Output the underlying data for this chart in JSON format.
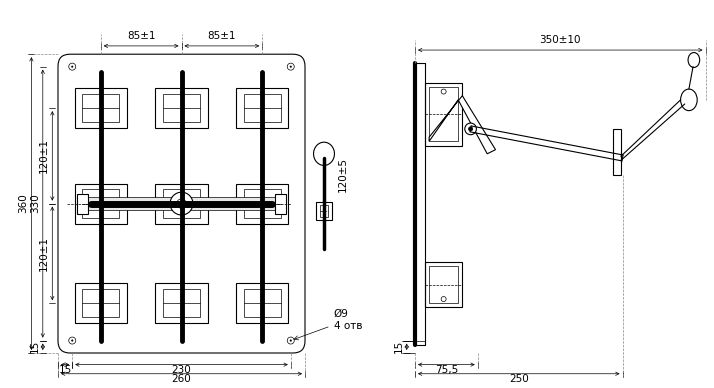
{
  "bg_color": "#ffffff",
  "line_color": "#000000",
  "dim_color": "#000000",
  "font_size_dim": 7.5,
  "font_size_label": 7.5,
  "title": ""
}
